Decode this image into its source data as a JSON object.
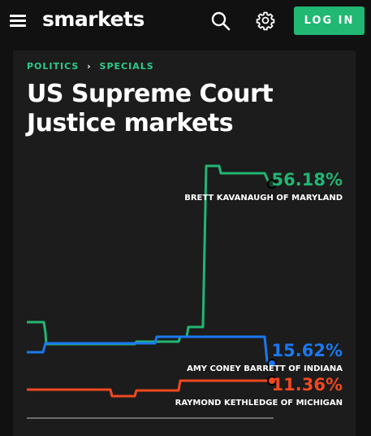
{
  "header": {
    "logo": "smarkets",
    "login_label": "LOG IN"
  },
  "breadcrumb": {
    "items": [
      "POLITICS",
      "SPECIALS"
    ]
  },
  "page_title": "US Supreme Court Justice markets",
  "colors": {
    "accent": "#20b873",
    "kavanaugh": "#22b573",
    "barrett": "#1a78f0",
    "kethledge": "#f0481f"
  },
  "icons": [
    "menu-icon",
    "search-icon",
    "gear-icon",
    "chevron-right-icon"
  ],
  "chart_data": {
    "type": "line",
    "series": [
      {
        "name": "BRETT KAVANAUGH OF MARYLAND",
        "label": "56.18%",
        "last_value": 56.18,
        "color": "#22b573"
      },
      {
        "name": "AMY CONEY BARRETT OF INDIANA",
        "label": "15.62%",
        "last_value": 15.62,
        "color": "#1a78f0"
      },
      {
        "name": "RAYMOND KETHLEDGE OF MICHIGAN",
        "label": "11.36%",
        "last_value": 11.36,
        "color": "#f0481f"
      }
    ]
  }
}
